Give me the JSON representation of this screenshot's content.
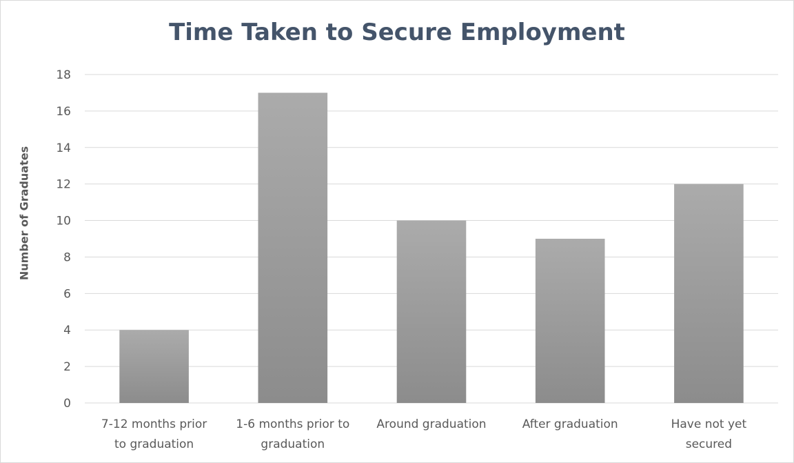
{
  "chart_data": {
    "type": "bar",
    "title": "Time Taken to Secure Employment",
    "xlabel": "",
    "ylabel": "Number of Graduates",
    "categories": [
      [
        "7-12 months prior",
        "to graduation"
      ],
      [
        "1-6 months prior to",
        "graduation"
      ],
      [
        "Around graduation"
      ],
      [
        "After graduation"
      ],
      [
        "Have not yet",
        "secured"
      ]
    ],
    "values": [
      4,
      17,
      10,
      9,
      12
    ],
    "ylim": [
      0,
      18
    ],
    "yticks": [
      0,
      2,
      4,
      6,
      8,
      10,
      12,
      14,
      16,
      18
    ],
    "grid": true,
    "legend": "none",
    "colors": {
      "bar_top": "#ababab",
      "bar_bottom": "#8c8c8c",
      "grid": "#d9d9d9",
      "title": "#44546a",
      "text": "#595959"
    }
  }
}
